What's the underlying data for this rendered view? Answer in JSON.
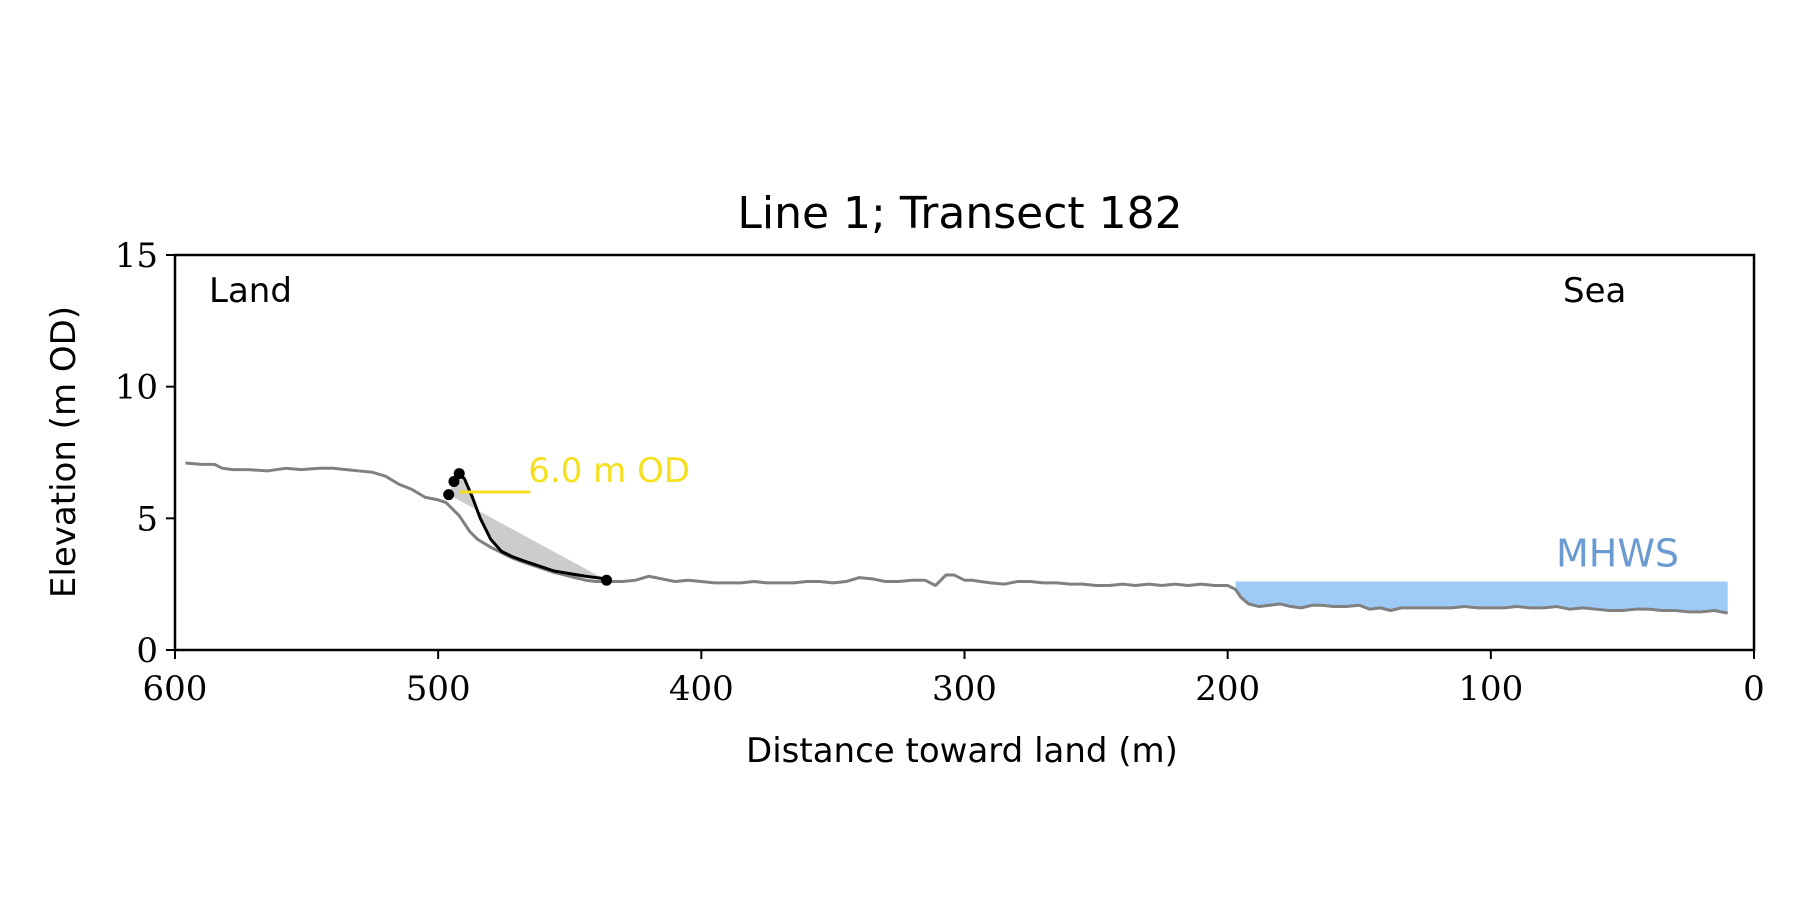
{
  "chart_data": {
    "type": "line",
    "title": "Line 1; Transect 182",
    "xlabel": "Distance toward land (m)",
    "ylabel": "Elevation (m OD)",
    "xlim": [
      600,
      0
    ],
    "ylim": [
      0,
      15
    ],
    "x_ticks": [
      600,
      500,
      400,
      300,
      200,
      100,
      0
    ],
    "y_ticks": [
      0,
      5,
      10,
      15
    ],
    "grid": false,
    "annotations": {
      "land_label": "Land",
      "sea_label": "Sea",
      "contour_label": "6.0 m OD",
      "mhws_label": "MHWS"
    },
    "colors": {
      "profile": "#808080",
      "cliff": "#000000",
      "contour": "#f5e020",
      "mhws_fill": "#9ecbf5",
      "mhws_text": "#6a9bd1",
      "cliff_fill": "#cccccc"
    },
    "contour_level": 6.0,
    "mhws_level": 2.6,
    "mhws_range": [
      197,
      10
    ],
    "contour_range": [
      492,
      465
    ],
    "series": [
      {
        "role": "ground-profile",
        "x": [
          596,
          590,
          585,
          582,
          578,
          572,
          565,
          558,
          552,
          545,
          540,
          535,
          530,
          525,
          520,
          515,
          510,
          505,
          500,
          497,
          492,
          488,
          485,
          480,
          476,
          472,
          468,
          462,
          456,
          450,
          444,
          440,
          436,
          430,
          425,
          420,
          415,
          410,
          405,
          400,
          395,
          390,
          385,
          380,
          375,
          370,
          365,
          360,
          355,
          350,
          345,
          340,
          335,
          330,
          325,
          320,
          315,
          311,
          307,
          304,
          300,
          297,
          294,
          290,
          285,
          280,
          275,
          270,
          265,
          260,
          255,
          250,
          245,
          240,
          235,
          230,
          225,
          220,
          215,
          210,
          205,
          200,
          197,
          195,
          192,
          188,
          184,
          180,
          176,
          172,
          168,
          164,
          160,
          155,
          150,
          146,
          142,
          138,
          134,
          130,
          125,
          120,
          115,
          110,
          105,
          100,
          95,
          90,
          85,
          80,
          75,
          70,
          65,
          60,
          55,
          50,
          45,
          40,
          35,
          30,
          25,
          20,
          15,
          10
        ],
        "y": [
          7.1,
          7.05,
          7.05,
          6.9,
          6.85,
          6.85,
          6.8,
          6.9,
          6.85,
          6.9,
          6.9,
          6.85,
          6.8,
          6.75,
          6.6,
          6.3,
          6.1,
          5.8,
          5.7,
          5.6,
          5.1,
          4.5,
          4.2,
          3.9,
          3.7,
          3.5,
          3.35,
          3.15,
          2.95,
          2.8,
          2.65,
          2.6,
          2.6,
          2.6,
          2.65,
          2.8,
          2.7,
          2.6,
          2.65,
          2.6,
          2.55,
          2.55,
          2.55,
          2.6,
          2.55,
          2.55,
          2.55,
          2.6,
          2.6,
          2.55,
          2.6,
          2.75,
          2.7,
          2.6,
          2.6,
          2.65,
          2.65,
          2.45,
          2.85,
          2.85,
          2.65,
          2.65,
          2.6,
          2.55,
          2.5,
          2.6,
          2.6,
          2.55,
          2.55,
          2.5,
          2.5,
          2.45,
          2.45,
          2.5,
          2.45,
          2.5,
          2.45,
          2.5,
          2.45,
          2.5,
          2.45,
          2.45,
          2.3,
          2.0,
          1.75,
          1.65,
          1.7,
          1.75,
          1.65,
          1.6,
          1.7,
          1.7,
          1.65,
          1.65,
          1.7,
          1.55,
          1.6,
          1.5,
          1.6,
          1.6,
          1.6,
          1.6,
          1.6,
          1.65,
          1.6,
          1.6,
          1.6,
          1.65,
          1.6,
          1.6,
          1.65,
          1.55,
          1.6,
          1.55,
          1.5,
          1.5,
          1.55,
          1.55,
          1.5,
          1.5,
          1.45,
          1.45,
          1.5,
          1.4
        ]
      },
      {
        "role": "cliff-profile",
        "x": [
          494,
          492,
          490,
          487,
          484,
          480,
          476,
          472,
          468,
          462,
          456,
          450,
          444,
          440,
          436
        ],
        "y": [
          6.4,
          6.7,
          6.5,
          5.8,
          5.0,
          4.2,
          3.75,
          3.55,
          3.4,
          3.2,
          3.0,
          2.9,
          2.8,
          2.75,
          2.7
        ]
      }
    ],
    "points": [
      {
        "role": "cliff-toe",
        "x": 496,
        "y": 5.9
      },
      {
        "role": "cliff-mid",
        "x": 494,
        "y": 6.4
      },
      {
        "role": "cliff-top",
        "x": 492,
        "y": 6.7
      },
      {
        "role": "cliff-base",
        "x": 436,
        "y": 2.65
      }
    ]
  }
}
